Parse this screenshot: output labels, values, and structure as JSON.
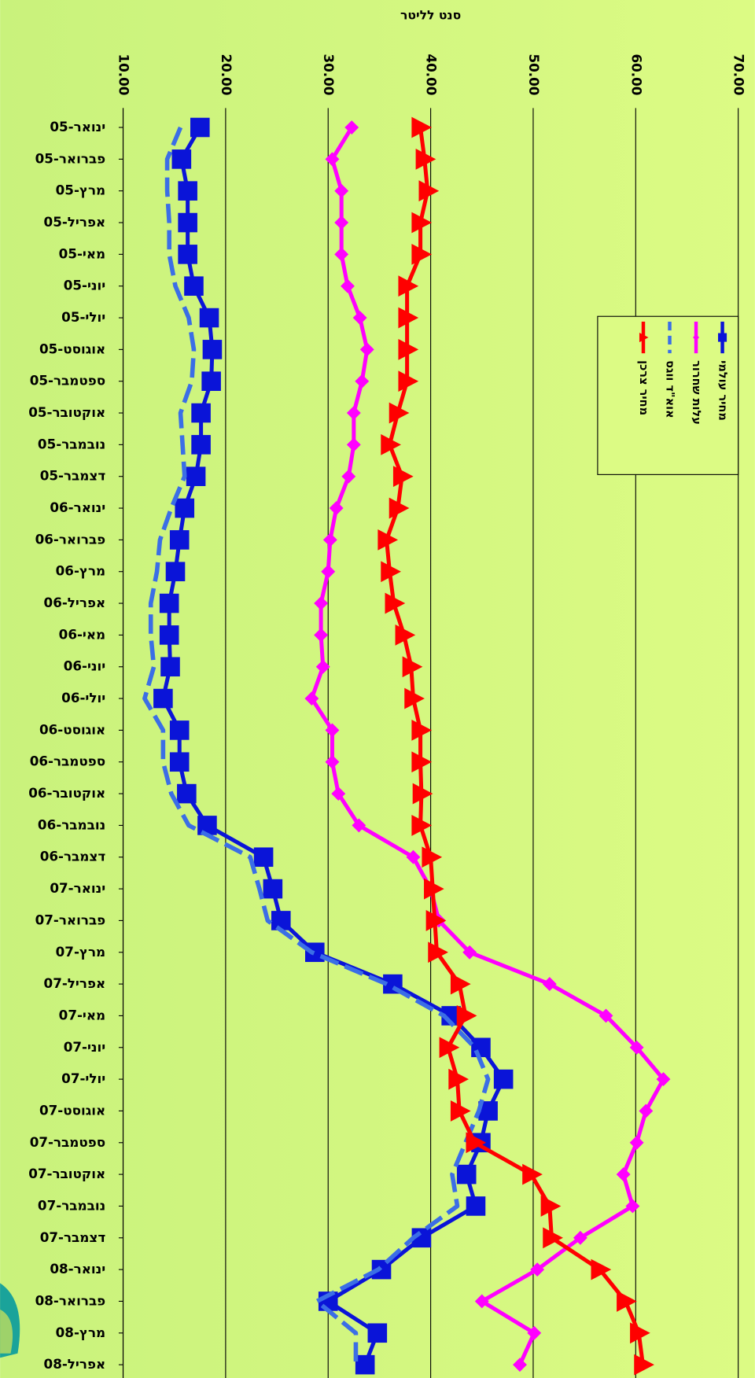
{
  "chart_data": {
    "type": "line",
    "title": "סנט לליטר",
    "categories": [
      "ינואר-05",
      "פברואר-05",
      "מרץ-05",
      "אפריל-05",
      "מאי-05",
      "יוני-05",
      "יולי-05",
      "אוגוסט-05",
      "ספטמבר-05",
      "אוקטובר-05",
      "נובמבר-05",
      "דצמבר-05",
      "ינואר-06",
      "פברואר-06",
      "מרץ-06",
      "אפריל-06",
      "מאי-06",
      "יוני-06",
      "יולי-06",
      "אוגוסט-06",
      "ספטמבר-06",
      "אוקטובר-06",
      "נובמבר-06",
      "דצמבר-06",
      "ינואר-07",
      "פברואר-07",
      "מרץ-07",
      "אפריל-07",
      "מאי-07",
      "יוני-07",
      "יולי-07",
      "אוגוסט-07",
      "ספטמבר-07",
      "אוקטובר-07",
      "נובמבר-07",
      "דצמבר-07",
      "ינואר-08",
      "פברואר-08",
      "מרץ-08",
      "אפריל-08"
    ],
    "xlim": [
      10,
      70
    ],
    "xticks": [
      {
        "value": 10,
        "label": "10.00"
      },
      {
        "value": 20,
        "label": "20.00"
      },
      {
        "value": 30,
        "label": "30.00"
      },
      {
        "value": 40,
        "label": "40.00"
      },
      {
        "value": 50,
        "label": "50.00"
      },
      {
        "value": 60,
        "label": "60.00"
      },
      {
        "value": 70,
        "label": "70.00"
      }
    ],
    "grid": true,
    "series": [
      {
        "name": "מחיר עולמי",
        "color": "#0a14d8",
        "marker": "square",
        "dashed": false,
        "values": [
          17.5,
          15.7,
          16.3,
          16.3,
          16.3,
          16.9,
          18.4,
          18.7,
          18.6,
          17.6,
          17.6,
          17.1,
          16.0,
          15.5,
          15.1,
          14.5,
          14.5,
          14.6,
          13.9,
          15.5,
          15.5,
          16.2,
          18.2,
          23.7,
          24.6,
          25.4,
          28.7,
          36.3,
          42.0,
          44.9,
          47.1,
          45.6,
          44.9,
          43.5,
          44.4,
          39.1,
          35.2,
          30.0,
          34.8,
          33.6
        ]
      },
      {
        "name": "עלות שחרור",
        "color": "#ff00ff",
        "marker": "diamond",
        "dashed": false,
        "values": [
          32.3,
          30.4,
          31.3,
          31.3,
          31.3,
          31.9,
          33.1,
          33.8,
          33.3,
          32.5,
          32.5,
          32.0,
          30.8,
          30.2,
          30.0,
          29.3,
          29.3,
          29.5,
          28.4,
          30.4,
          30.4,
          31.0,
          33.0,
          38.3,
          40.0,
          40.8,
          43.8,
          51.6,
          57.1,
          60.1,
          62.7,
          61.0,
          60.1,
          58.8,
          59.7,
          54.6,
          50.4,
          45.0,
          50.1,
          48.7
        ]
      },
      {
        "name": "אוא\"ד ווגס",
        "color": "#3b6ee6",
        "marker": "none",
        "dashed": true,
        "values": [
          15.6,
          14.3,
          14.3,
          14.5,
          14.5,
          15.1,
          16.4,
          16.9,
          16.7,
          15.6,
          15.8,
          16.0,
          14.7,
          13.6,
          13.3,
          12.7,
          12.7,
          13.0,
          12.1,
          13.9,
          13.9,
          14.7,
          16.4,
          22.4,
          23.3,
          24.1,
          28.4,
          35.7,
          41.3,
          44.3,
          45.6,
          44.7,
          43.4,
          42.1,
          42.6,
          38.3,
          34.9,
          28.9,
          32.7,
          32.7
        ]
      },
      {
        "name": "מחיר צרכן",
        "color": "#ff0000",
        "marker": "triangle",
        "dashed": false,
        "values": [
          39.0,
          39.4,
          39.7,
          39.0,
          39.0,
          37.7,
          37.7,
          37.7,
          37.7,
          36.8,
          36.0,
          37.2,
          36.8,
          35.7,
          36.0,
          36.4,
          37.4,
          38.1,
          38.3,
          39.0,
          39.0,
          39.1,
          39.0,
          40.0,
          40.2,
          40.4,
          40.6,
          42.8,
          43.4,
          41.7,
          42.6,
          42.8,
          44.3,
          49.8,
          51.6,
          51.8,
          56.5,
          59.0,
          60.3,
          60.7
        ]
      }
    ]
  }
}
